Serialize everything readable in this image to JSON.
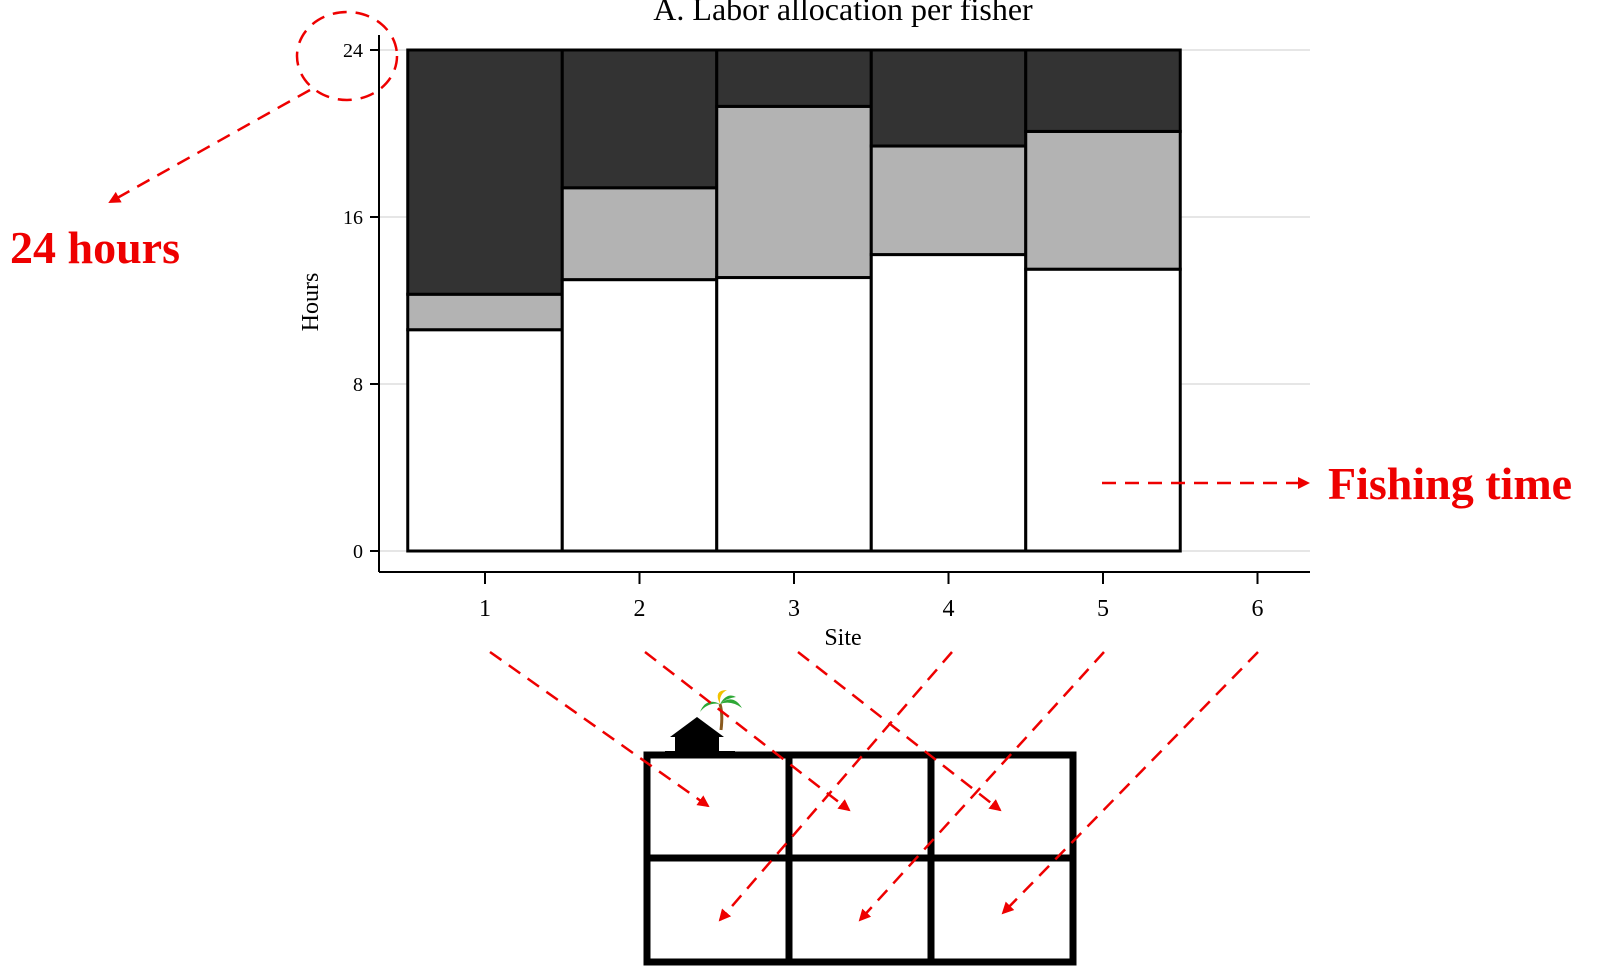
{
  "chart_data": {
    "type": "bar",
    "stacked": true,
    "title": "A. Labor allocation per fisher",
    "xlabel": "Site",
    "ylabel": "Hours",
    "ylim": [
      0,
      24
    ],
    "yticks": [
      0,
      8,
      16,
      24
    ],
    "xticks": [
      "1",
      "2",
      "3",
      "4",
      "5",
      "6"
    ],
    "categories": [
      "1",
      "2",
      "3",
      "4",
      "5"
    ],
    "grid": true,
    "series": [
      {
        "color": "#ffffff",
        "values": [
          10.6,
          13.0,
          13.1,
          14.2,
          13.5
        ]
      },
      {
        "color": "#b3b3b3",
        "values": [
          1.7,
          4.4,
          8.2,
          5.2,
          6.6
        ]
      },
      {
        "color": "#333333",
        "values": [
          11.7,
          6.6,
          2.7,
          4.6,
          3.9
        ]
      }
    ]
  },
  "annotations": {
    "hours_label": "24 hours",
    "fishing_label": "Fishing time",
    "color": "#ee0000"
  },
  "map": {
    "rows": 2,
    "cols": 3,
    "icons": [
      "hut-icon",
      "palm-tree-icon"
    ]
  }
}
